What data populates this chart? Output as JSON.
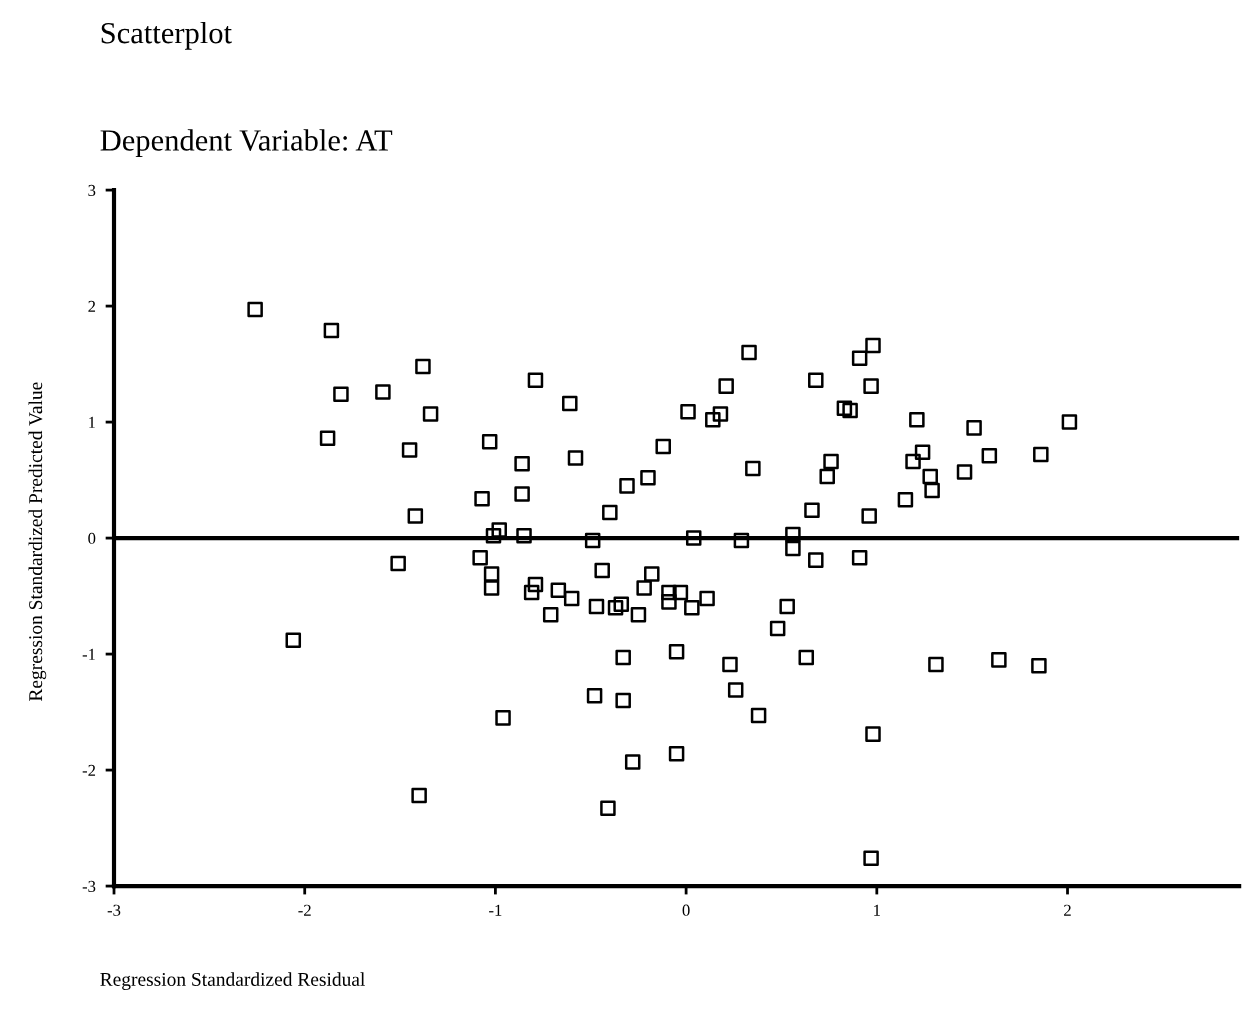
{
  "chart_data": {
    "type": "scatter",
    "title": "Scatterplot",
    "subtitle": "Dependent Variable: AT",
    "xlabel": "Regression Standardized Residual",
    "ylabel": "Regression Standardized Predicted Value",
    "xlim": [
      -3,
      2.9
    ],
    "ylim": [
      -3,
      3
    ],
    "xticks": [
      -3,
      -2,
      -1,
      0,
      1,
      2
    ],
    "yticks": [
      -3,
      -2,
      -1,
      0,
      1,
      2,
      3
    ],
    "marker": "square",
    "grid": false,
    "legend": false,
    "ref_lines": [
      {
        "axis": "y",
        "value": 0,
        "color": "#000000"
      }
    ],
    "series": [
      {
        "color": "#000000",
        "x": [
          -2.26,
          -1.86,
          -1.38,
          -1.81,
          -1.59,
          -1.34,
          -1.88,
          -1.45,
          -0.79,
          -0.61,
          -1.03,
          -0.86,
          -0.58,
          -1.07,
          -0.86,
          -0.31,
          -0.4,
          -1.42,
          -0.98,
          -1.01,
          -0.85,
          -0.49,
          -1.51,
          -1.08,
          -1.02,
          -1.02,
          -0.44,
          -0.79,
          -0.81,
          -0.67,
          -0.6,
          -0.71,
          -0.47,
          -0.37,
          -0.34,
          -2.06,
          0.33,
          0.21,
          0.68,
          0.91,
          0.98,
          0.97,
          0.83,
          0.86,
          0.01,
          0.14,
          0.18,
          -0.12,
          0.35,
          0.76,
          0.74,
          -0.2,
          1.21,
          1.51,
          2.01,
          1.24,
          1.19,
          1.28,
          1.29,
          1.46,
          1.59,
          1.86,
          1.15,
          0.66,
          0.96,
          0.04,
          0.29,
          0.56,
          0.56,
          0.68,
          0.91,
          -0.18,
          -0.22,
          -0.09,
          -0.03,
          -0.09,
          0.03,
          0.11,
          -0.25,
          0.53,
          0.48,
          -0.33,
          -0.05,
          0.23,
          0.63,
          1.31,
          1.64,
          1.85,
          0.26,
          0.38,
          0.98,
          -0.48,
          -0.33,
          -0.28,
          -0.05,
          -0.41,
          0.97,
          -0.96,
          -1.4
        ],
        "values": [
          1.97,
          1.79,
          1.48,
          1.24,
          1.26,
          1.07,
          0.86,
          0.76,
          1.36,
          1.16,
          0.83,
          0.64,
          0.69,
          0.34,
          0.38,
          0.45,
          0.22,
          0.19,
          0.07,
          0.02,
          0.02,
          -0.02,
          -0.22,
          -0.17,
          -0.31,
          -0.43,
          -0.28,
          -0.4,
          -0.47,
          -0.45,
          -0.52,
          -0.66,
          -0.59,
          -0.6,
          -0.57,
          -0.88,
          1.6,
          1.31,
          1.36,
          1.55,
          1.66,
          1.31,
          1.12,
          1.1,
          1.09,
          1.02,
          1.07,
          0.79,
          0.6,
          0.66,
          0.53,
          0.52,
          1.02,
          0.95,
          1.0,
          0.74,
          0.66,
          0.53,
          0.41,
          0.57,
          0.71,
          0.72,
          0.33,
          0.24,
          0.19,
          0.0,
          -0.02,
          0.03,
          -0.09,
          -0.19,
          -0.17,
          -0.31,
          -0.43,
          -0.47,
          -0.47,
          -0.55,
          -0.6,
          -0.52,
          -0.66,
          -0.59,
          -0.78,
          -1.03,
          -0.98,
          -1.09,
          -1.03,
          -1.09,
          -1.05,
          -1.1,
          -1.31,
          -1.53,
          -1.69,
          -1.36,
          -1.4,
          -1.93,
          -1.86,
          -2.33,
          -2.76,
          -1.55,
          -2.22
        ]
      }
    ]
  }
}
